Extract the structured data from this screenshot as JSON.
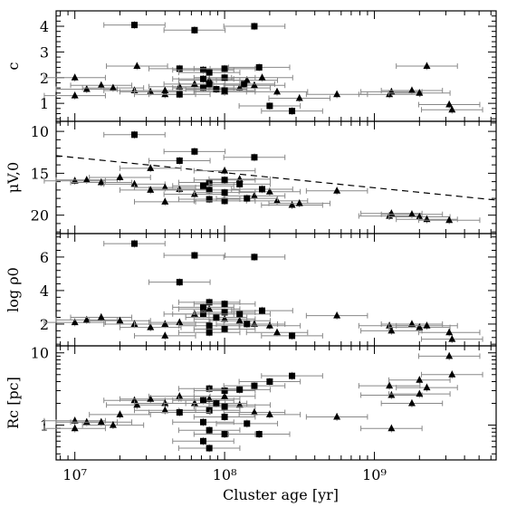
{
  "chart_data": {
    "type": "scatter",
    "shared_x": {
      "label": "Cluster age [yr]",
      "scale": "log",
      "range": [
        7500000,
        6500000000
      ],
      "tick_labels": [
        "10⁷",
        "10⁸",
        "10⁹"
      ],
      "tick_values": [
        10000000,
        100000000,
        1000000000
      ]
    },
    "marker_legend": {
      "square": "filled squares",
      "triangle": "filled triangles"
    },
    "panels": [
      {
        "ylabel": "c",
        "ylim": [
          0.3,
          4.6
        ],
        "y_ticks": [
          1,
          2,
          3,
          4
        ],
        "y_tick_labels": [
          "1",
          "2",
          "3",
          "4"
        ],
        "squares": [
          [
            25000000,
            4.05
          ],
          [
            63000000,
            3.85
          ],
          [
            158000000,
            4.0
          ],
          [
            50000000,
            2.35
          ],
          [
            72000000,
            2.3
          ],
          [
            79000000,
            2.2
          ],
          [
            100000000,
            2.35
          ],
          [
            170000000,
            2.4
          ],
          [
            100000000,
            2.0
          ],
          [
            79000000,
            1.75
          ],
          [
            135000000,
            1.75
          ],
          [
            72000000,
            1.6
          ],
          [
            88000000,
            1.55
          ],
          [
            200000000,
            0.9
          ],
          [
            282000000,
            0.7
          ],
          [
            50000000,
            1.35
          ],
          [
            72000000,
            1.95
          ],
          [
            100000000,
            1.5
          ]
        ],
        "triangles": [
          [
            10000000,
            2.0
          ],
          [
            10000000,
            1.3
          ],
          [
            12000000,
            1.55
          ],
          [
            15000000,
            1.7
          ],
          [
            18000000,
            1.6
          ],
          [
            25000000,
            1.5
          ],
          [
            26000000,
            2.45
          ],
          [
            32000000,
            1.45
          ],
          [
            40000000,
            1.35
          ],
          [
            40000000,
            1.5
          ],
          [
            50000000,
            1.65
          ],
          [
            63000000,
            1.75
          ],
          [
            79000000,
            1.9
          ],
          [
            100000000,
            1.45
          ],
          [
            126000000,
            1.6
          ],
          [
            141000000,
            1.9
          ],
          [
            158000000,
            1.7
          ],
          [
            178000000,
            2.0
          ],
          [
            224000000,
            1.45
          ],
          [
            316000000,
            1.2
          ],
          [
            562000000,
            1.35
          ],
          [
            1260000000,
            1.35
          ],
          [
            1300000000,
            1.45
          ],
          [
            1780000000,
            1.5
          ],
          [
            2000000000,
            1.4
          ],
          [
            2240000000,
            2.45
          ],
          [
            3160000000,
            0.95
          ],
          [
            3300000000,
            0.75
          ]
        ]
      },
      {
        "ylabel": "μV,0",
        "ylim": [
          22.2,
          8.8
        ],
        "y_ticks": [
          10,
          15,
          20
        ],
        "y_tick_labels": [
          "10",
          "15",
          "20"
        ],
        "inverted": true,
        "dashed_line": {
          "x": [
            7500000,
            6500000000
          ],
          "y": [
            12.9,
            18.2
          ]
        },
        "squares": [
          [
            25000000,
            10.4
          ],
          [
            63000000,
            12.4
          ],
          [
            158000000,
            13.1
          ],
          [
            50000000,
            13.5
          ],
          [
            79000000,
            16.1
          ],
          [
            100000000,
            15.8
          ],
          [
            72000000,
            16.5
          ],
          [
            126000000,
            16.3
          ],
          [
            79000000,
            17.0
          ],
          [
            100000000,
            17.3
          ],
          [
            79000000,
            18.1
          ],
          [
            100000000,
            18.3
          ],
          [
            141000000,
            18.0
          ],
          [
            178000000,
            16.9
          ]
        ],
        "triangles": [
          [
            10000000,
            15.9
          ],
          [
            12000000,
            15.8
          ],
          [
            15000000,
            16.1
          ],
          [
            20000000,
            15.5
          ],
          [
            32000000,
            14.4
          ],
          [
            25000000,
            16.3
          ],
          [
            40000000,
            16.7
          ],
          [
            50000000,
            16.9
          ],
          [
            63000000,
            17.5
          ],
          [
            32000000,
            17.0
          ],
          [
            40000000,
            18.4
          ],
          [
            100000000,
            14.7
          ],
          [
            126000000,
            15.7
          ],
          [
            158000000,
            17.7
          ],
          [
            200000000,
            17.2
          ],
          [
            224000000,
            18.3
          ],
          [
            282000000,
            18.8
          ],
          [
            316000000,
            18.6
          ],
          [
            562000000,
            17.1
          ],
          [
            1260000000,
            20.1
          ],
          [
            1300000000,
            19.8
          ],
          [
            1780000000,
            19.9
          ],
          [
            2000000000,
            20.2
          ],
          [
            2240000000,
            20.5
          ],
          [
            3160000000,
            20.6
          ]
        ]
      },
      {
        "ylabel": "log ρ0",
        "ylim": [
          0.7,
          7.4
        ],
        "y_ticks": [
          2,
          4,
          6
        ],
        "y_tick_labels": [
          "2",
          "4",
          "6"
        ],
        "squares": [
          [
            25000000,
            6.8
          ],
          [
            63000000,
            6.1
          ],
          [
            158000000,
            6.0
          ],
          [
            50000000,
            4.5
          ],
          [
            72000000,
            3.0
          ],
          [
            79000000,
            3.3
          ],
          [
            100000000,
            3.2
          ],
          [
            72000000,
            2.6
          ],
          [
            88000000,
            2.4
          ],
          [
            100000000,
            2.7
          ],
          [
            126000000,
            2.6
          ],
          [
            178000000,
            2.8
          ],
          [
            79000000,
            1.9
          ],
          [
            100000000,
            1.7
          ],
          [
            141000000,
            2.0
          ],
          [
            282000000,
            1.3
          ],
          [
            79000000,
            1.5
          ]
        ],
        "triangles": [
          [
            10000000,
            2.1
          ],
          [
            12000000,
            2.25
          ],
          [
            15000000,
            2.4
          ],
          [
            20000000,
            2.2
          ],
          [
            25000000,
            2.0
          ],
          [
            32000000,
            1.8
          ],
          [
            40000000,
            1.3
          ],
          [
            40000000,
            2.0
          ],
          [
            50000000,
            2.1
          ],
          [
            63000000,
            2.6
          ],
          [
            79000000,
            2.9
          ],
          [
            100000000,
            2.3
          ],
          [
            126000000,
            2.2
          ],
          [
            158000000,
            2.0
          ],
          [
            200000000,
            1.9
          ],
          [
            224000000,
            1.5
          ],
          [
            562000000,
            2.5
          ],
          [
            1260000000,
            1.9
          ],
          [
            1300000000,
            1.6
          ],
          [
            1780000000,
            2.0
          ],
          [
            2000000000,
            1.8
          ],
          [
            2240000000,
            1.9
          ],
          [
            3160000000,
            1.5
          ],
          [
            3300000000,
            1.1
          ]
        ]
      },
      {
        "ylabel": "Rc [pc]",
        "ylim": [
          0.33,
          12.5
        ],
        "y_ticks": [
          1,
          10
        ],
        "y_tick_labels": [
          "1",
          "10"
        ],
        "scale": "log",
        "squares": [
          [
            79000000,
            3.2
          ],
          [
            100000000,
            3.0
          ],
          [
            126000000,
            3.1
          ],
          [
            158000000,
            3.5
          ],
          [
            200000000,
            4.0
          ],
          [
            282000000,
            4.8
          ],
          [
            72000000,
            2.2
          ],
          [
            88000000,
            2.0
          ],
          [
            100000000,
            1.8
          ],
          [
            79000000,
            1.6
          ],
          [
            100000000,
            1.3
          ],
          [
            72000000,
            1.1
          ],
          [
            79000000,
            0.85
          ],
          [
            100000000,
            0.75
          ],
          [
            72000000,
            0.6
          ],
          [
            79000000,
            0.48
          ],
          [
            170000000,
            0.75
          ],
          [
            141000000,
            1.05
          ],
          [
            50000000,
            1.5
          ]
        ],
        "triangles": [
          [
            10000000,
            1.15
          ],
          [
            10000000,
            0.9
          ],
          [
            12000000,
            1.1
          ],
          [
            15000000,
            1.1
          ],
          [
            18000000,
            1.0
          ],
          [
            20000000,
            1.4
          ],
          [
            25000000,
            2.2
          ],
          [
            26000000,
            1.9
          ],
          [
            32000000,
            2.3
          ],
          [
            40000000,
            2.0
          ],
          [
            40000000,
            1.6
          ],
          [
            50000000,
            2.5
          ],
          [
            63000000,
            2.0
          ],
          [
            79000000,
            2.3
          ],
          [
            100000000,
            2.5
          ],
          [
            126000000,
            1.9
          ],
          [
            158000000,
            1.5
          ],
          [
            200000000,
            1.4
          ],
          [
            562000000,
            1.3
          ],
          [
            1260000000,
            3.5
          ],
          [
            1300000000,
            0.9
          ],
          [
            1300000000,
            2.6
          ],
          [
            1780000000,
            2.0
          ],
          [
            2000000000,
            4.2
          ],
          [
            2000000000,
            2.7
          ],
          [
            2240000000,
            3.3
          ],
          [
            3160000000,
            9.0
          ],
          [
            3300000000,
            5.0
          ]
        ]
      }
    ]
  }
}
